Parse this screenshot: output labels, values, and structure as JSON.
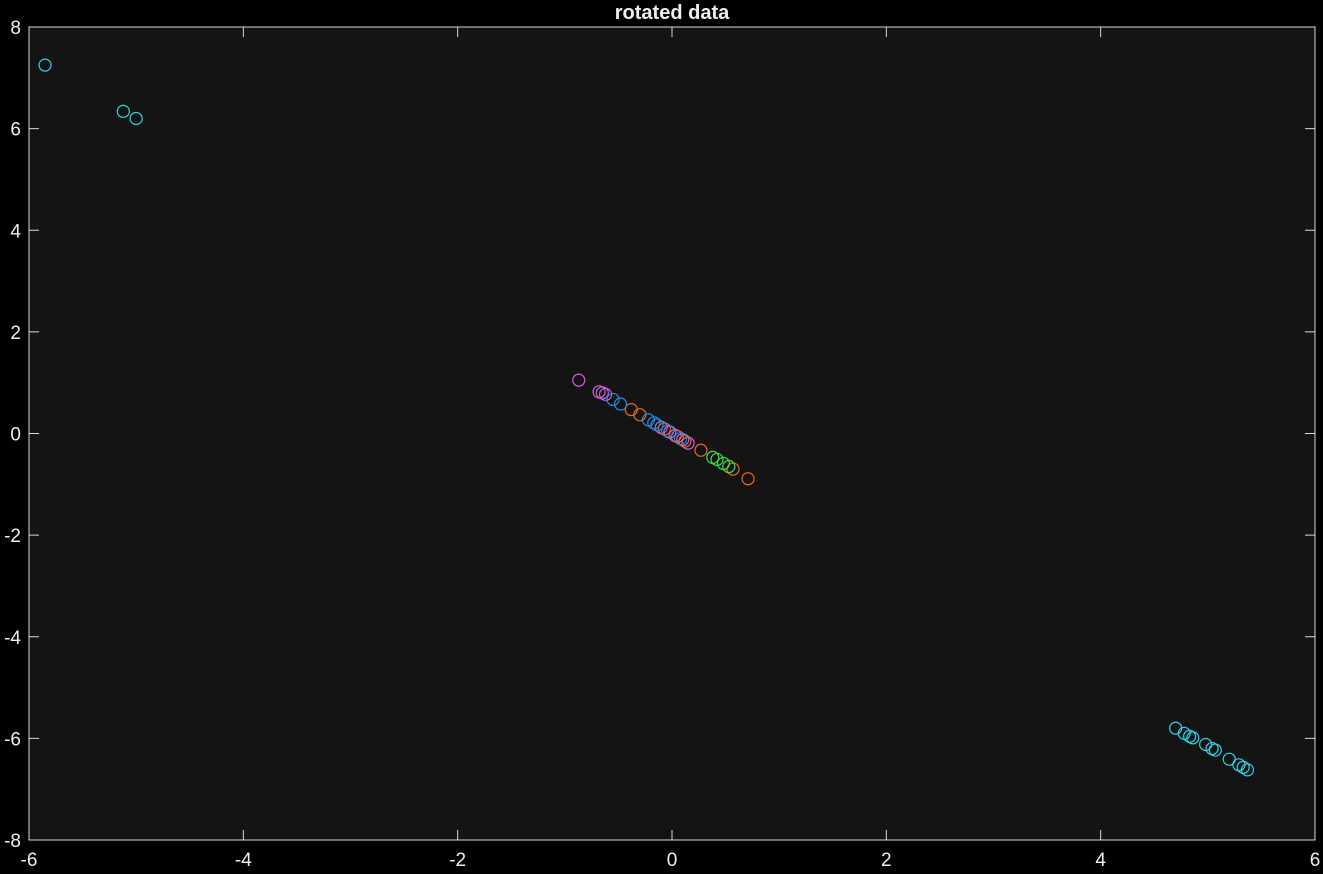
{
  "chart_data": {
    "type": "scatter",
    "title": "rotated data",
    "xlabel": "",
    "ylabel": "",
    "xlim": [
      -6,
      6
    ],
    "ylim": [
      -8,
      8
    ],
    "xticks": [
      -6,
      -4,
      -2,
      0,
      2,
      4,
      6
    ],
    "yticks": [
      -8,
      -6,
      -4,
      -2,
      0,
      2,
      4,
      6,
      8
    ],
    "xtick_labels": [
      "-6",
      "-4",
      "-2",
      "0",
      "2",
      "4",
      "6"
    ],
    "ytick_labels": [
      "-8",
      "-6",
      "-4",
      "-2",
      "0",
      "2",
      "4",
      "6",
      "8"
    ],
    "grid": false,
    "legend": "none",
    "colors": {
      "figure_background": "#000000",
      "axes_background": "#141414",
      "axis_color": "#d9d9d9",
      "text_color": "#f0f0f0"
    },
    "marker": "open-circle",
    "series": [
      {
        "color": "#2fd4e8",
        "points": [
          [
            -5.85,
            7.25
          ],
          [
            -5.12,
            6.34
          ],
          [
            -5.0,
            6.2
          ],
          [
            4.7,
            -5.8
          ],
          [
            4.78,
            -5.9
          ],
          [
            4.83,
            -5.96
          ],
          [
            4.86,
            -5.99
          ],
          [
            4.98,
            -6.12
          ],
          [
            5.04,
            -6.2
          ],
          [
            5.07,
            -6.23
          ],
          [
            5.2,
            -6.41
          ],
          [
            5.29,
            -6.52
          ],
          [
            5.33,
            -6.57
          ],
          [
            5.37,
            -6.62
          ]
        ]
      },
      {
        "color": "#d35fe0",
        "points": [
          [
            -0.87,
            1.05
          ],
          [
            -0.68,
            0.82
          ],
          [
            -0.65,
            0.8
          ],
          [
            -0.62,
            0.77
          ],
          [
            -0.1,
            0.12
          ],
          [
            -0.02,
            0.03
          ],
          [
            0.03,
            -0.04
          ],
          [
            0.1,
            -0.12
          ],
          [
            0.15,
            -0.19
          ]
        ]
      },
      {
        "color": "#e96a1f",
        "points": [
          [
            -0.38,
            0.47
          ],
          [
            -0.3,
            0.37
          ],
          [
            -0.07,
            0.09
          ],
          [
            0.05,
            -0.06
          ],
          [
            0.12,
            -0.15
          ],
          [
            0.27,
            -0.33
          ],
          [
            0.57,
            -0.7
          ],
          [
            0.71,
            -0.89
          ]
        ]
      },
      {
        "color": "#1f8fe6",
        "points": [
          [
            -0.55,
            0.67
          ],
          [
            -0.48,
            0.58
          ],
          [
            -0.22,
            0.27
          ],
          [
            -0.17,
            0.21
          ],
          [
            -0.14,
            0.17
          ],
          [
            -0.04,
            0.05
          ],
          [
            0.08,
            -0.1
          ]
        ]
      },
      {
        "color": "#3fe04a",
        "points": [
          [
            0.38,
            -0.47
          ],
          [
            0.42,
            -0.51
          ],
          [
            0.48,
            -0.59
          ],
          [
            0.53,
            -0.65
          ]
        ]
      }
    ]
  }
}
